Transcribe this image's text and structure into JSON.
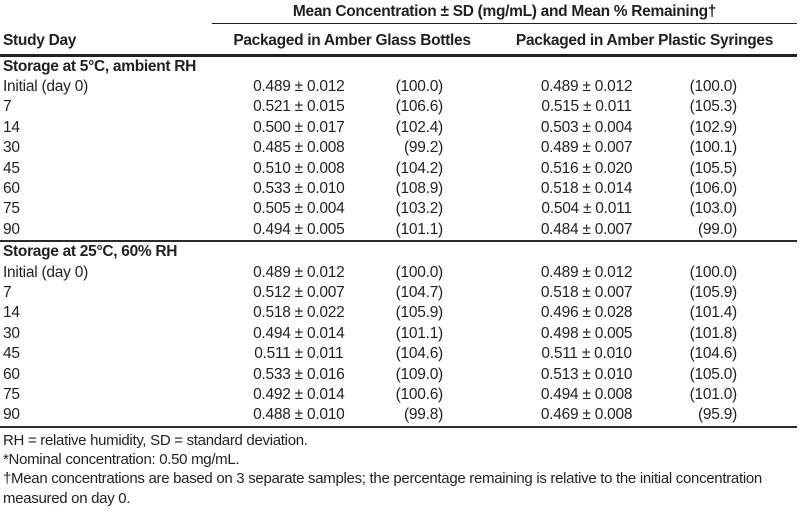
{
  "table": {
    "spanner_header": "Mean Concentration ± SD (mg/mL) and Mean % Remaining†",
    "col_study_day": "Study Day",
    "col_glass": "Packaged in Amber Glass Bottles",
    "col_syringe": "Packaged in Amber Plastic Syringes",
    "sections": [
      {
        "title": "Storage at 5°C, ambient RH",
        "rows": [
          {
            "day": "Initial (day 0)",
            "glass_conc": "0.489 ± 0.012",
            "glass_pct": "(100.0)",
            "syringe_conc": "0.489 ± 0.012",
            "syringe_pct": "(100.0)"
          },
          {
            "day": "7",
            "glass_conc": "0.521 ± 0.015",
            "glass_pct": "(106.6)",
            "syringe_conc": "0.515 ± 0.011",
            "syringe_pct": "(105.3)"
          },
          {
            "day": "14",
            "glass_conc": "0.500 ± 0.017",
            "glass_pct": "(102.4)",
            "syringe_conc": "0.503 ± 0.004",
            "syringe_pct": "(102.9)"
          },
          {
            "day": "30",
            "glass_conc": "0.485 ± 0.008",
            "glass_pct": "(99.2)",
            "syringe_conc": "0.489 ± 0.007",
            "syringe_pct": "(100.1)"
          },
          {
            "day": "45",
            "glass_conc": "0.510 ± 0.008",
            "glass_pct": "(104.2)",
            "syringe_conc": "0.516 ± 0.020",
            "syringe_pct": "(105.5)"
          },
          {
            "day": "60",
            "glass_conc": "0.533 ± 0.010",
            "glass_pct": "(108.9)",
            "syringe_conc": "0.518 ± 0.014",
            "syringe_pct": "(106.0)"
          },
          {
            "day": "75",
            "glass_conc": "0.505 ± 0.004",
            "glass_pct": "(103.2)",
            "syringe_conc": "0.504 ± 0.011",
            "syringe_pct": "(103.0)"
          },
          {
            "day": "90",
            "glass_conc": "0.494 ± 0.005",
            "glass_pct": "(101.1)",
            "syringe_conc": "0.484 ± 0.007",
            "syringe_pct": "(99.0)"
          }
        ]
      },
      {
        "title": "Storage at 25°C, 60% RH",
        "rows": [
          {
            "day": "Initial (day 0)",
            "glass_conc": "0.489 ± 0.012",
            "glass_pct": "(100.0)",
            "syringe_conc": "0.489 ± 0.012",
            "syringe_pct": "(100.0)"
          },
          {
            "day": "7",
            "glass_conc": "0.512 ± 0.007",
            "glass_pct": "(104.7)",
            "syringe_conc": "0.518 ± 0.007",
            "syringe_pct": "(105.9)"
          },
          {
            "day": "14",
            "glass_conc": "0.518 ± 0.022",
            "glass_pct": "(105.9)",
            "syringe_conc": "0.496 ± 0.028",
            "syringe_pct": "(101.4)"
          },
          {
            "day": "30",
            "glass_conc": "0.494 ± 0.014",
            "glass_pct": "(101.1)",
            "syringe_conc": "0.498 ± 0.005",
            "syringe_pct": "(101.8)"
          },
          {
            "day": "45",
            "glass_conc": "0.511 ± 0.011",
            "glass_pct": "(104.6)",
            "syringe_conc": "0.511 ± 0.010",
            "syringe_pct": "(104.6)"
          },
          {
            "day": "60",
            "glass_conc": "0.533 ± 0.016",
            "glass_pct": "(109.0)",
            "syringe_conc": "0.513 ± 0.010",
            "syringe_pct": "(105.0)"
          },
          {
            "day": "75",
            "glass_conc": "0.492 ± 0.014",
            "glass_pct": "(100.6)",
            "syringe_conc": "0.494 ± 0.008",
            "syringe_pct": "(101.0)"
          },
          {
            "day": "90",
            "glass_conc": "0.488 ± 0.010",
            "glass_pct": "(99.8)",
            "syringe_conc": "0.469 ± 0.008",
            "syringe_pct": "(95.9)"
          }
        ]
      }
    ]
  },
  "footnotes": [
    "RH = relative humidity, SD = standard deviation.",
    "*Nominal concentration: 0.50 mg/mL.",
    "†Mean concentrations are based on 3 separate samples; the percentage remaining is relative to the initial concentration measured on day 0."
  ],
  "colors": {
    "text": "#231f20",
    "rule": "#231f20",
    "background": "#ffffff"
  }
}
